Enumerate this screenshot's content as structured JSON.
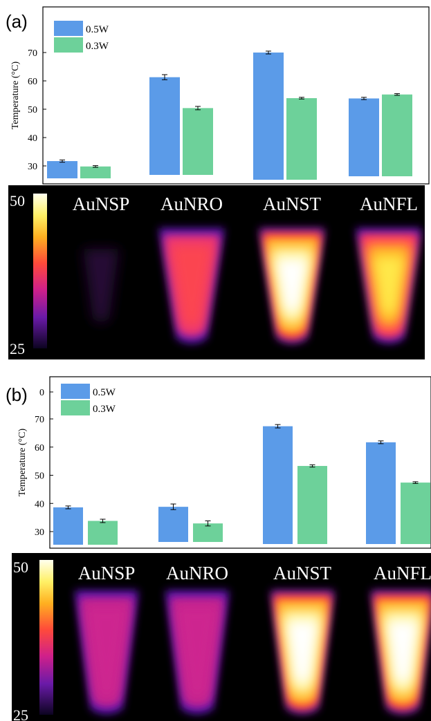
{
  "panels": [
    {
      "label": "(a)",
      "chart_data": {
        "type": "bar",
        "categories": [
          "AuNSP",
          "AuNRO",
          "AuNST",
          "AuNFL"
        ],
        "series": [
          {
            "name": "0.5W",
            "values": [
              31.7,
              61.3,
              70.0,
              53.8
            ],
            "errors": [
              0.4,
              0.9,
              0.5,
              0.4
            ]
          },
          {
            "name": "0.3W",
            "values": [
              29.8,
              50.4,
              53.9,
              55.2
            ],
            "errors": [
              0.3,
              0.6,
              0.3,
              0.3
            ]
          }
        ],
        "ylabel": "Temperature (°C)",
        "yticks": [
          "30",
          "40",
          "50",
          "60",
          "70"
        ],
        "legend": "top-left"
      },
      "colorbar": {
        "max": "50",
        "min": "25"
      },
      "sample_labels": [
        "AuNSP",
        "AuNRO",
        "AuNST",
        "AuNFL"
      ],
      "intensities": [
        0.12,
        0.62,
        1.0,
        0.86
      ]
    },
    {
      "label": "(b)",
      "chart_data": {
        "type": "bar",
        "categories": [
          "AuNSP",
          "AuNRO",
          "AuNST",
          "AuNFL"
        ],
        "series": [
          {
            "name": "0.5W",
            "values": [
              38.6,
              38.8,
              67.4,
              61.7
            ],
            "errors": [
              0.5,
              1.0,
              0.6,
              0.5
            ]
          },
          {
            "name": "0.3W",
            "values": [
              33.8,
              32.9,
              53.3,
              47.4
            ],
            "errors": [
              0.6,
              0.9,
              0.4,
              0.3
            ]
          }
        ],
        "ylabel": "Temperature (°C)",
        "yticks": [
          "0",
          "30",
          "40",
          "50",
          "60",
          "70"
        ],
        "legend": "top-left"
      },
      "colorbar": {
        "max": "50",
        "min": "25"
      },
      "sample_labels": [
        "AuNSP",
        "AuNRO",
        "AuNST",
        "AuNFL"
      ],
      "intensities": [
        0.48,
        0.52,
        1.0,
        1.0
      ]
    }
  ],
  "colors": {
    "series_0": "#5b9be8",
    "series_1": "#6dd19a",
    "axis": "#000000"
  }
}
